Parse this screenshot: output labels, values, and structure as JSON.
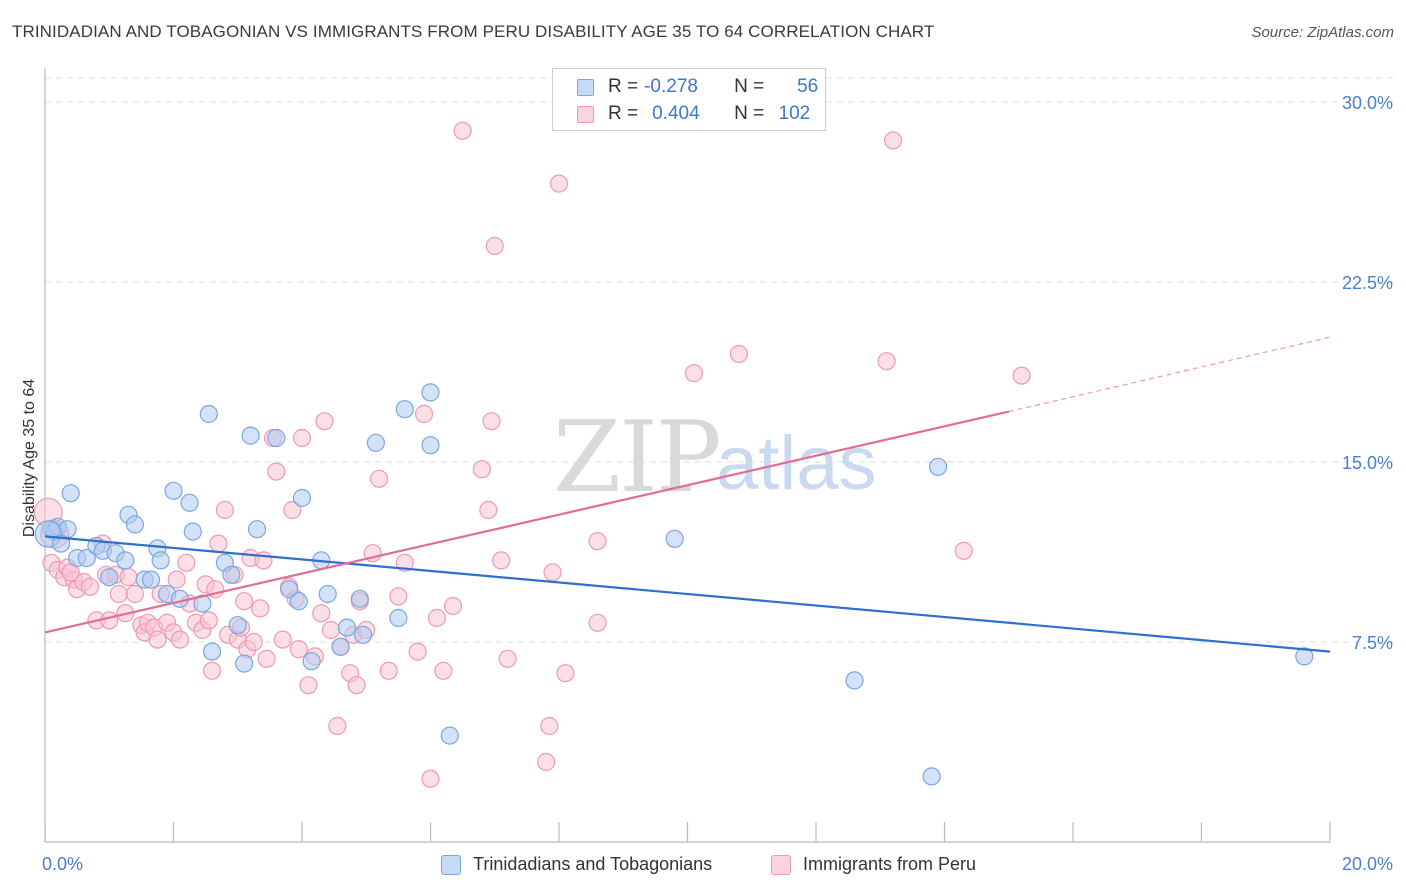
{
  "header": {
    "title": "TRINIDADIAN AND TOBAGONIAN VS IMMIGRANTS FROM PERU DISABILITY AGE 35 TO 64 CORRELATION CHART",
    "source": "Source: ZipAtlas.com"
  },
  "watermark": {
    "zip": "ZIP",
    "atlas": "atlas"
  },
  "stats_legend": {
    "rows": [
      {
        "r_label": "R =",
        "r_value": "-0.278",
        "n_label": "N =",
        "n_value": "56",
        "color": "#7ba7e0"
      },
      {
        "r_label": "R =",
        "r_value": "0.404",
        "n_label": "N =",
        "n_value": "102",
        "color": "#f29bb6"
      }
    ]
  },
  "colors": {
    "blue_fill": "#aecbf0",
    "blue_stroke": "#7ba7e0",
    "blue_line": "#2f6fcc",
    "pink_fill": "#f7c3d2",
    "pink_stroke": "#ee9ab4",
    "pink_line": "#e46b96",
    "tick_label": "#4a80cc",
    "grid": "#dddddd"
  },
  "chart_data": {
    "type": "scatter",
    "title": "TRINIDADIAN AND TOBAGONIAN VS IMMIGRANTS FROM PERU DISABILITY AGE 35 TO 64 CORRELATION CHART",
    "xlabel": "",
    "ylabel": "Disability Age 35 to 64",
    "xlim": [
      0,
      20
    ],
    "ylim": [
      0,
      31
    ],
    "x_tick_labels": [
      "0.0%",
      "20.0%"
    ],
    "y_ticks": [
      7.5,
      15.0,
      22.5,
      30.0
    ],
    "y_tick_labels": [
      "7.5%",
      "15.0%",
      "22.5%",
      "30.0%"
    ],
    "grid": true,
    "legend_position": "bottom",
    "series": [
      {
        "name": "Trinidadians and Tobagonians",
        "color": "#7ba7e0",
        "r": -0.278,
        "n": 56,
        "trend": {
          "x": [
            0,
            20
          ],
          "y": [
            11.9,
            7.1
          ]
        },
        "points": [
          [
            0.1,
            12.2
          ],
          [
            0.15,
            12.1
          ],
          [
            0.2,
            12.3
          ],
          [
            0.35,
            12.2
          ],
          [
            0.4,
            13.7
          ],
          [
            0.5,
            11.0
          ],
          [
            0.65,
            11.0
          ],
          [
            0.8,
            11.5
          ],
          [
            0.9,
            11.3
          ],
          [
            1.0,
            10.2
          ],
          [
            1.1,
            11.2
          ],
          [
            1.25,
            10.9
          ],
          [
            1.3,
            12.8
          ],
          [
            1.4,
            12.4
          ],
          [
            1.55,
            10.1
          ],
          [
            1.65,
            10.1
          ],
          [
            1.75,
            11.4
          ],
          [
            1.8,
            10.9
          ],
          [
            1.9,
            9.5
          ],
          [
            2.0,
            13.8
          ],
          [
            2.1,
            9.3
          ],
          [
            2.25,
            13.3
          ],
          [
            2.3,
            12.1
          ],
          [
            2.45,
            9.1
          ],
          [
            2.55,
            17.0
          ],
          [
            2.6,
            7.1
          ],
          [
            2.8,
            10.8
          ],
          [
            2.9,
            10.3
          ],
          [
            3.0,
            8.2
          ],
          [
            3.1,
            6.6
          ],
          [
            3.2,
            16.1
          ],
          [
            3.3,
            12.2
          ],
          [
            3.6,
            16.0
          ],
          [
            3.8,
            9.7
          ],
          [
            3.95,
            9.2
          ],
          [
            4.0,
            13.5
          ],
          [
            4.15,
            6.7
          ],
          [
            4.3,
            10.9
          ],
          [
            4.4,
            9.5
          ],
          [
            4.6,
            7.3
          ],
          [
            4.7,
            8.1
          ],
          [
            4.9,
            9.3
          ],
          [
            4.95,
            7.8
          ],
          [
            5.15,
            15.8
          ],
          [
            5.5,
            8.5
          ],
          [
            5.6,
            17.2
          ],
          [
            6.0,
            15.7
          ],
          [
            6.0,
            17.9
          ],
          [
            6.3,
            3.6
          ],
          [
            9.8,
            11.8
          ],
          [
            12.6,
            5.9
          ],
          [
            13.8,
            1.9
          ],
          [
            13.9,
            14.8
          ],
          [
            19.6,
            6.9
          ],
          [
            0.05,
            12.0
          ],
          [
            0.25,
            11.6
          ]
        ]
      },
      {
        "name": "Immigrants from Peru",
        "color": "#ee9ab4",
        "r": 0.404,
        "n": 102,
        "trend": {
          "x": [
            0,
            15
          ],
          "y": [
            7.9,
            17.1
          ]
        },
        "trend_dashed": {
          "x": [
            15,
            20
          ],
          "y": [
            17.1,
            20.2
          ]
        },
        "points": [
          [
            0.05,
            12.9
          ],
          [
            0.1,
            10.8
          ],
          [
            0.2,
            10.5
          ],
          [
            0.3,
            10.2
          ],
          [
            0.35,
            10.6
          ],
          [
            0.45,
            10.1
          ],
          [
            0.5,
            9.7
          ],
          [
            0.6,
            10.0
          ],
          [
            0.7,
            9.8
          ],
          [
            0.8,
            8.4
          ],
          [
            0.9,
            11.6
          ],
          [
            0.95,
            10.3
          ],
          [
            1.0,
            8.4
          ],
          [
            1.1,
            10.3
          ],
          [
            1.15,
            9.5
          ],
          [
            1.25,
            8.7
          ],
          [
            1.3,
            10.2
          ],
          [
            1.4,
            9.5
          ],
          [
            1.5,
            8.2
          ],
          [
            1.55,
            7.9
          ],
          [
            1.6,
            8.3
          ],
          [
            1.7,
            8.1
          ],
          [
            1.75,
            7.6
          ],
          [
            1.8,
            9.5
          ],
          [
            1.9,
            8.3
          ],
          [
            2.0,
            7.9
          ],
          [
            2.05,
            10.1
          ],
          [
            2.1,
            7.6
          ],
          [
            2.2,
            10.8
          ],
          [
            2.25,
            9.1
          ],
          [
            2.35,
            8.3
          ],
          [
            2.45,
            8.0
          ],
          [
            2.5,
            9.9
          ],
          [
            2.55,
            8.4
          ],
          [
            2.6,
            6.3
          ],
          [
            2.65,
            9.7
          ],
          [
            2.7,
            11.6
          ],
          [
            2.8,
            13.0
          ],
          [
            2.85,
            7.8
          ],
          [
            2.95,
            10.3
          ],
          [
            3.0,
            7.6
          ],
          [
            3.05,
            8.1
          ],
          [
            3.1,
            9.2
          ],
          [
            3.15,
            7.2
          ],
          [
            3.2,
            11.0
          ],
          [
            3.25,
            7.5
          ],
          [
            3.35,
            8.9
          ],
          [
            3.4,
            10.9
          ],
          [
            3.45,
            6.8
          ],
          [
            3.55,
            16.0
          ],
          [
            3.6,
            14.6
          ],
          [
            3.7,
            7.6
          ],
          [
            3.8,
            9.8
          ],
          [
            3.85,
            13.0
          ],
          [
            3.9,
            9.3
          ],
          [
            3.95,
            7.2
          ],
          [
            4.0,
            16.0
          ],
          [
            4.1,
            5.7
          ],
          [
            4.2,
            6.9
          ],
          [
            4.3,
            8.7
          ],
          [
            4.35,
            16.7
          ],
          [
            4.45,
            8.0
          ],
          [
            4.55,
            4.0
          ],
          [
            4.6,
            7.3
          ],
          [
            4.75,
            6.2
          ],
          [
            4.8,
            7.8
          ],
          [
            4.85,
            5.7
          ],
          [
            4.9,
            9.2
          ],
          [
            5.0,
            8.0
          ],
          [
            5.1,
            11.2
          ],
          [
            5.2,
            14.3
          ],
          [
            5.35,
            6.3
          ],
          [
            5.5,
            9.4
          ],
          [
            5.6,
            10.8
          ],
          [
            5.8,
            7.1
          ],
          [
            5.9,
            17.0
          ],
          [
            6.0,
            1.8
          ],
          [
            6.1,
            8.5
          ],
          [
            6.2,
            6.3
          ],
          [
            6.35,
            9.0
          ],
          [
            6.5,
            28.8
          ],
          [
            6.8,
            14.7
          ],
          [
            6.9,
            13.0
          ],
          [
            6.95,
            16.7
          ],
          [
            7.0,
            24.0
          ],
          [
            7.1,
            10.9
          ],
          [
            7.2,
            6.8
          ],
          [
            7.8,
            2.5
          ],
          [
            7.85,
            4.0
          ],
          [
            7.9,
            10.4
          ],
          [
            8.0,
            26.6
          ],
          [
            8.1,
            6.2
          ],
          [
            8.6,
            11.7
          ],
          [
            8.6,
            8.3
          ],
          [
            10.1,
            18.7
          ],
          [
            10.8,
            19.5
          ],
          [
            13.1,
            19.2
          ],
          [
            13.2,
            28.4
          ],
          [
            14.3,
            11.3
          ],
          [
            15.2,
            18.6
          ],
          [
            0.15,
            12.0
          ],
          [
            0.4,
            10.4
          ]
        ]
      }
    ]
  },
  "bottom_legend": {
    "items": [
      {
        "label": "Trinidadians and Tobagonians",
        "color": "#aecbf0",
        "border": "#7ba7e0"
      },
      {
        "label": "Immigrants from Peru",
        "color": "#f7c3d2",
        "border": "#ee9ab4"
      }
    ]
  }
}
